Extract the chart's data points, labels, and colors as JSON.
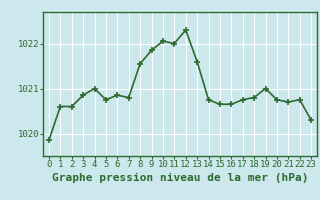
{
  "x": [
    0,
    1,
    2,
    3,
    4,
    5,
    6,
    7,
    8,
    9,
    10,
    11,
    12,
    13,
    14,
    15,
    16,
    17,
    18,
    19,
    20,
    21,
    22,
    23
  ],
  "y": [
    1019.85,
    1020.6,
    1020.6,
    1020.85,
    1021.0,
    1020.75,
    1020.85,
    1020.8,
    1021.55,
    1021.85,
    1022.05,
    1022.0,
    1022.3,
    1021.6,
    1020.75,
    1020.65,
    1020.65,
    1020.75,
    1020.8,
    1021.0,
    1020.75,
    1020.7,
    1020.75,
    1020.3
  ],
  "line_color": "#2d6a2d",
  "marker": "+",
  "marker_size": 5,
  "marker_linewidth": 1.2,
  "line_width": 1.2,
  "background_color": "#cce8ec",
  "grid_color": "#ffffff",
  "xlabel": "Graphe pression niveau de la mer (hPa)",
  "xlabel_fontsize": 8,
  "xlabel_fontweight": "bold",
  "xtick_labels": [
    "0",
    "1",
    "2",
    "3",
    "4",
    "5",
    "6",
    "7",
    "8",
    "9",
    "10",
    "11",
    "12",
    "13",
    "14",
    "15",
    "16",
    "17",
    "18",
    "19",
    "20",
    "21",
    "22",
    "23"
  ],
  "ytick_values": [
    1020,
    1021,
    1022
  ],
  "ylim": [
    1019.5,
    1022.7
  ],
  "xlim": [
    -0.5,
    23.5
  ],
  "tick_color": "#2d6a2d",
  "tick_fontsize": 6.5,
  "border_color": "#2d6a2d",
  "spine_linewidth": 1.0
}
